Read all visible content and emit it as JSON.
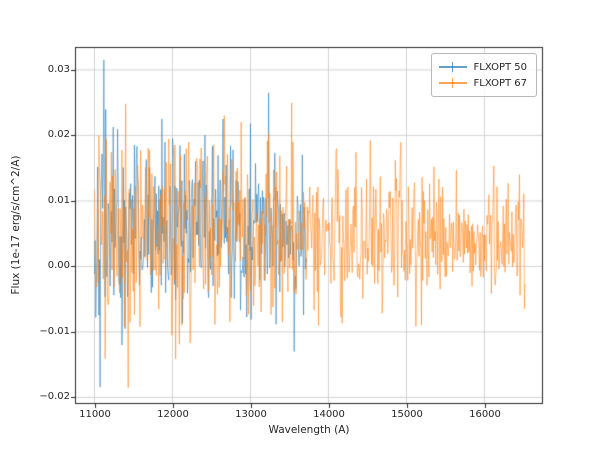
{
  "chart_data": {
    "type": "line",
    "title": "",
    "xlabel": "Wavelength (A)",
    "ylabel": "Flux (1e-17 erg/s/cm^2/A)",
    "xlim": [
      10750,
      16750
    ],
    "ylim": [
      -0.021,
      0.0335
    ],
    "grid": true,
    "legend_position": "upper right",
    "x_ticks": [
      11000,
      12000,
      13000,
      14000,
      15000,
      16000
    ],
    "y_ticks": [
      -0.02,
      -0.01,
      0.0,
      0.01,
      0.02,
      0.03
    ],
    "x_tick_labels": [
      "11000",
      "12000",
      "13000",
      "14000",
      "15000",
      "16000"
    ],
    "y_tick_labels": [
      "−0.02",
      "−0.01",
      "0.00",
      "0.01",
      "0.02",
      "0.03"
    ],
    "series": [
      {
        "name": "FLXOPT 50",
        "color": "#1f77b4",
        "alpha": 0.55,
        "x_start": 11000,
        "x_end": 13720,
        "step": 8,
        "mean_start": 0.006,
        "mean_end": 0.006,
        "sigma_start": 0.0075,
        "sigma_end": 0.0055,
        "seed": 42,
        "y_max_approx": 0.0315,
        "y_min_approx": -0.013,
        "spikes": [
          {
            "x": 11120,
            "y": 0.0315
          },
          {
            "x": 11350,
            "y": -0.012
          },
          {
            "x": 12650,
            "y": 0.0225
          },
          {
            "x": 13230,
            "y": 0.0265
          },
          {
            "x": 13560,
            "y": -0.013
          }
        ]
      },
      {
        "name": "FLXOPT 67",
        "color": "#ff7f0e",
        "alpha": 0.55,
        "x_start": 11000,
        "x_end": 16520,
        "step": 8,
        "mean_start": 0.006,
        "mean_end": 0.004,
        "sigma_start": 0.0085,
        "sigma_end": 0.0035,
        "seed": 1337,
        "y_max_approx": 0.02,
        "y_min_approx": -0.0185,
        "spikes": [
          {
            "x": 11060,
            "y": 0.02
          },
          {
            "x": 11430,
            "y": -0.0185
          },
          {
            "x": 12210,
            "y": 0.019
          },
          {
            "x": 13870,
            "y": -0.009
          },
          {
            "x": 16450,
            "y": 0.014
          }
        ]
      }
    ],
    "style": {
      "grid_color": "#c8c8c8",
      "spine_color": "#262626",
      "background": "#ffffff"
    }
  }
}
